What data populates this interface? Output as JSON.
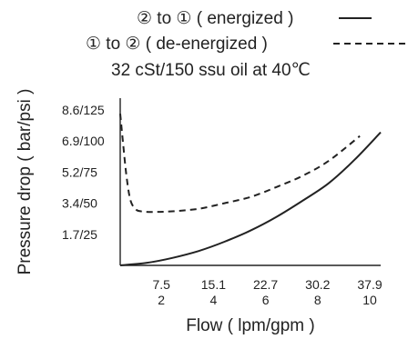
{
  "legend": {
    "solid_label": "② to ① ( energized )",
    "dashed_label": "① to ② ( de-energized )",
    "condition": "32 cSt/150 ssu oil at 40℃"
  },
  "chart_data": {
    "type": "line",
    "xlabel": "Flow ( lpm/gpm )",
    "ylabel": "Pressure drop ( bar/psi )",
    "xlim": [
      0,
      10
    ],
    "ylim": [
      0,
      125
    ],
    "x_ticks": [
      {
        "lpm": "7.5",
        "gpm": "2",
        "value": 2
      },
      {
        "lpm": "15.1",
        "gpm": "4",
        "value": 4
      },
      {
        "lpm": "22.7",
        "gpm": "6",
        "value": 6
      },
      {
        "lpm": "30.2",
        "gpm": "8",
        "value": 8
      },
      {
        "lpm": "37.9",
        "gpm": "10",
        "value": 10
      }
    ],
    "y_ticks": [
      {
        "label": "1.7/25",
        "value": 25
      },
      {
        "label": "3.4/50",
        "value": 50
      },
      {
        "label": "5.2/75",
        "value": 75
      },
      {
        "label": "6.9/100",
        "value": 100
      },
      {
        "label": "8.6/125",
        "value": 125
      }
    ],
    "grid": false,
    "series": [
      {
        "name": "② to ① ( energized )",
        "style": "solid",
        "color": "#222222",
        "x": [
          0,
          1,
          2,
          3,
          4,
          5,
          6,
          7,
          8,
          9,
          10
        ],
        "y": [
          0,
          2,
          6,
          11.5,
          19,
          28,
          39,
          52,
          66,
          85,
          107
        ]
      },
      {
        "name": "① to ② ( de-energized )",
        "style": "dashed",
        "color": "#222222",
        "x": [
          0,
          0.1,
          0.25,
          0.4,
          0.6,
          0.8,
          1.2,
          2,
          3,
          4,
          5,
          6,
          7,
          8,
          9.2
        ],
        "y": [
          122,
          100,
          70,
          52,
          45,
          43.5,
          43,
          43.5,
          45.5,
          50,
          55,
          63,
          72,
          84,
          104
        ]
      }
    ]
  }
}
